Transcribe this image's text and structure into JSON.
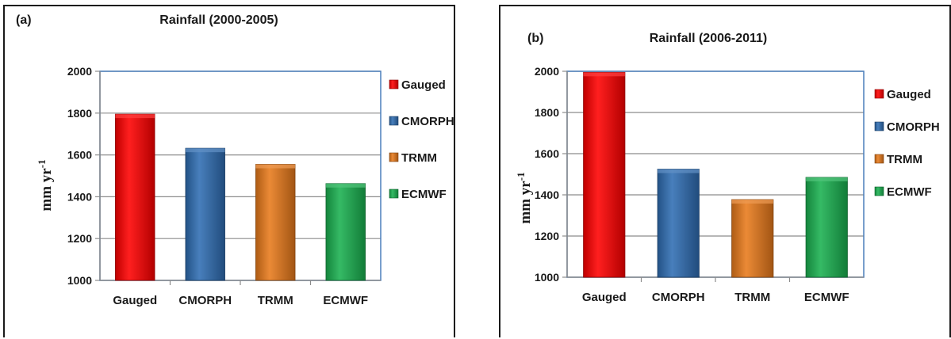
{
  "chart_data": [
    {
      "type": "bar",
      "panel_label": "(a)",
      "title": "Rainfall  (2000-2005)",
      "ylabel": {
        "base": "mm yr",
        "superscript": "-1"
      },
      "categories": [
        "Gauged",
        "CMORPH",
        "TRMM",
        "ECMWF"
      ],
      "values": [
        1795,
        1632,
        1555,
        1463
      ],
      "ylim": [
        1000,
        2000
      ],
      "yticks": [
        "1000",
        "1200",
        "1400",
        "1600",
        "1800",
        "2000"
      ],
      "colors": [
        "#ff0000",
        "#2f6db3",
        "#e87a1b",
        "#1ab150"
      ],
      "legend": [
        "Gauged",
        "CMORPH",
        "TRMM",
        "ECMWF"
      ],
      "legend_position": "right",
      "grid": true
    },
    {
      "type": "bar",
      "panel_label": "(b)",
      "title": "Rainfall (2006-2011)",
      "ylabel": {
        "base": "mm yr",
        "superscript": "-1"
      },
      "categories": [
        "Gauged",
        "CMORPH",
        "TRMM",
        "ECMWF"
      ],
      "values": [
        1995,
        1525,
        1377,
        1485
      ],
      "ylim": [
        1000,
        2000
      ],
      "yticks": [
        "1000",
        "1200",
        "1400",
        "1600",
        "1800",
        "2000"
      ],
      "colors": [
        "#ff0000",
        "#2f6db3",
        "#e87a1b",
        "#1ab150"
      ],
      "legend": [
        "Gauged",
        "CMORPH",
        "TRMM",
        "ECMWF"
      ],
      "legend_position": "right",
      "grid": true
    }
  ]
}
